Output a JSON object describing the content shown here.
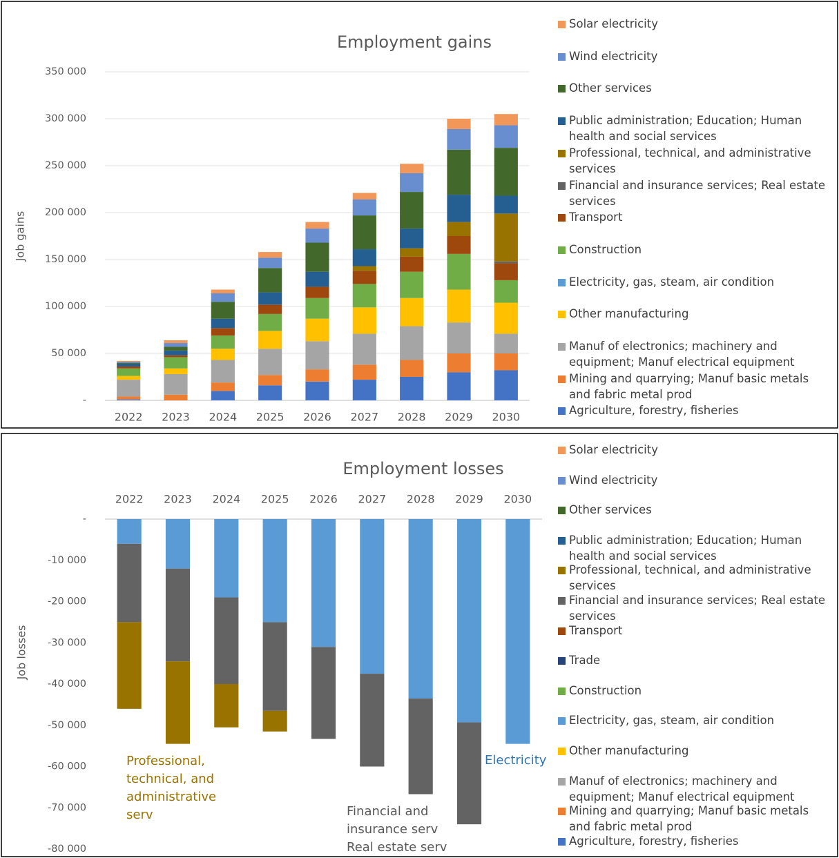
{
  "chart_data": [
    {
      "type": "stacked_bar",
      "title": "Employment gains",
      "y_label": "Job gains",
      "categories": [
        "2022",
        "2023",
        "2024",
        "2025",
        "2026",
        "2027",
        "2028",
        "2029",
        "2030"
      ],
      "ylim": [
        0,
        350000
      ],
      "yticks": [
        {
          "value": 0,
          "label": "-"
        },
        {
          "value": 50000,
          "label": "50 000"
        },
        {
          "value": 100000,
          "label": "100 000"
        },
        {
          "value": 150000,
          "label": "150 000"
        },
        {
          "value": 200000,
          "label": "200 000"
        },
        {
          "value": 250000,
          "label": "250 000"
        },
        {
          "value": 300000,
          "label": "300 000"
        },
        {
          "value": 350000,
          "label": "350 000"
        }
      ],
      "grid": true,
      "series": [
        {
          "name": "Agriculture, forestry, fisheries",
          "color": "#4472c4",
          "values": [
            1000,
            0,
            10000,
            16000,
            20000,
            22000,
            25000,
            30000,
            32000
          ]
        },
        {
          "name": "Mining and quarrying; Manuf basic metals and fabric metal prod",
          "color": "#ed7d31",
          "values": [
            3000,
            6000,
            9000,
            11000,
            13000,
            16000,
            18000,
            20000,
            18000
          ]
        },
        {
          "name": "Manuf of electronics; machinery and equipment; Manuf electrical equipment",
          "color": "#a5a5a5",
          "values": [
            18000,
            22000,
            24000,
            28000,
            30000,
            33000,
            36000,
            33000,
            21000
          ]
        },
        {
          "name": "Other manufacturing",
          "color": "#ffc000",
          "values": [
            4000,
            6000,
            12000,
            19000,
            24000,
            28000,
            30000,
            35000,
            33000
          ]
        },
        {
          "name": "Electricity, gas, steam, air condition",
          "color": "#5b9bd5",
          "values": [
            0,
            0,
            0,
            0,
            0,
            0,
            0,
            0,
            0
          ]
        },
        {
          "name": "Construction",
          "color": "#70ad47",
          "values": [
            8000,
            12000,
            14000,
            18000,
            22000,
            25000,
            28000,
            38000,
            24000
          ]
        },
        {
          "name": "Transport",
          "color": "#9e480e",
          "values": [
            2000,
            2000,
            8000,
            10000,
            12000,
            14000,
            16000,
            19000,
            18000
          ]
        },
        {
          "name": "Financial and insurance services; Real estate services",
          "color": "#636363",
          "values": [
            0,
            0,
            0,
            0,
            0,
            0,
            0,
            0,
            2000
          ]
        },
        {
          "name": "Professional, technical, and administrative services",
          "color": "#997300",
          "values": [
            0,
            0,
            0,
            0,
            0,
            5000,
            9000,
            15000,
            51000
          ]
        },
        {
          "name": "Public administration; Education; Human health and social services",
          "color": "#255e91",
          "values": [
            3000,
            5000,
            10000,
            13000,
            16000,
            18000,
            21000,
            29000,
            19000
          ]
        },
        {
          "name": "Other services",
          "color": "#43682b",
          "values": [
            1000,
            4000,
            18000,
            26000,
            31000,
            36000,
            39000,
            48000,
            51000
          ]
        },
        {
          "name": "Wind electricity",
          "color": "#698ed0",
          "values": [
            1000,
            4000,
            9000,
            11000,
            15000,
            17000,
            20000,
            22000,
            24000
          ]
        },
        {
          "name": "Solar electricity",
          "color": "#f1975a",
          "values": [
            1000,
            3000,
            4000,
            6000,
            7000,
            7000,
            10000,
            11000,
            12000
          ]
        }
      ]
    },
    {
      "type": "stacked_bar",
      "title": "Employment losses",
      "y_label": "Job losses",
      "categories": [
        "2022",
        "2023",
        "2024",
        "2025",
        "2026",
        "2027",
        "2028",
        "2029",
        "2030"
      ],
      "ylim": [
        -80000,
        0
      ],
      "yticks": [
        {
          "value": 0,
          "label": "-"
        },
        {
          "value": -10000,
          "label": "-10 000"
        },
        {
          "value": -20000,
          "label": "-20 000"
        },
        {
          "value": -30000,
          "label": "-30 000"
        },
        {
          "value": -40000,
          "label": "-40 000"
        },
        {
          "value": -50000,
          "label": "-50 000"
        },
        {
          "value": -60000,
          "label": "-60 000"
        },
        {
          "value": -70000,
          "label": "-70 000"
        },
        {
          "value": -80000,
          "label": "-80 000"
        }
      ],
      "grid": false,
      "annotations": [
        "Professional,\ntechnical, and\nadministrative\nserv",
        "Financial and\ninsurance serv\nReal estate serv",
        "Electricity"
      ],
      "series": [
        {
          "name": "Agriculture, forestry, fisheries",
          "color": "#4472c4",
          "values": [
            0,
            0,
            0,
            0,
            0,
            0,
            0,
            0,
            0
          ]
        },
        {
          "name": "Mining and quarrying; Manuf basic metals and fabric metal prod",
          "color": "#ed7d31",
          "values": [
            0,
            0,
            0,
            0,
            0,
            0,
            0,
            0,
            0
          ]
        },
        {
          "name": "Manuf of electronics; machinery and equipment; Manuf electrical equipment",
          "color": "#a5a5a5",
          "values": [
            0,
            0,
            0,
            0,
            0,
            0,
            0,
            0,
            0
          ]
        },
        {
          "name": "Other manufacturing",
          "color": "#ffc000",
          "values": [
            0,
            0,
            0,
            0,
            0,
            0,
            0,
            0,
            0
          ]
        },
        {
          "name": "Electricity, gas, steam, air condition",
          "color": "#5b9bd5",
          "values": [
            -6000,
            -12000,
            -19000,
            -25000,
            -31000,
            -37500,
            -43500,
            -49300,
            -54500
          ]
        },
        {
          "name": "Construction",
          "color": "#70ad47",
          "values": [
            0,
            0,
            0,
            0,
            0,
            0,
            0,
            0,
            0
          ]
        },
        {
          "name": "Trade",
          "color": "#264478",
          "values": [
            0,
            0,
            0,
            0,
            0,
            0,
            0,
            0,
            0
          ]
        },
        {
          "name": "Transport",
          "color": "#9e480e",
          "values": [
            0,
            0,
            0,
            0,
            0,
            0,
            0,
            0,
            0
          ]
        },
        {
          "name": "Financial and insurance services; Real estate services",
          "color": "#636363",
          "values": [
            -19000,
            -22500,
            -21000,
            -21500,
            -22300,
            -22500,
            -23200,
            -24700,
            0
          ]
        },
        {
          "name": "Professional, technical, and administrative services",
          "color": "#997300",
          "values": [
            -21000,
            -20000,
            -10500,
            -5000,
            0,
            0,
            0,
            0,
            0
          ]
        },
        {
          "name": "Public administration; Education; Human health and social services",
          "color": "#255e91",
          "values": [
            0,
            0,
            0,
            0,
            0,
            0,
            0,
            0,
            0
          ]
        },
        {
          "name": "Other services",
          "color": "#43682b",
          "values": [
            0,
            0,
            0,
            0,
            0,
            0,
            0,
            0,
            0
          ]
        },
        {
          "name": "Wind electricity",
          "color": "#698ed0",
          "values": [
            0,
            0,
            0,
            0,
            0,
            0,
            0,
            0,
            0
          ]
        },
        {
          "name": "Solar electricity",
          "color": "#f1975a",
          "values": [
            0,
            0,
            0,
            0,
            0,
            0,
            0,
            0,
            0
          ]
        }
      ]
    }
  ]
}
